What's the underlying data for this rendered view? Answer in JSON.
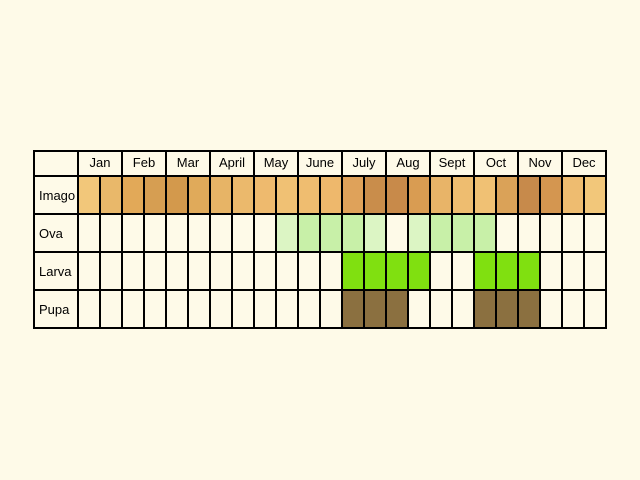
{
  "chart_data": {
    "type": "table",
    "months": [
      "Jan",
      "Feb",
      "Mar",
      "April",
      "May",
      "June",
      "July",
      "Aug",
      "Sept",
      "Oct",
      "Nov",
      "Dec"
    ],
    "half_month_columns": 24,
    "stages": [
      {
        "name": "Imago",
        "fill_color": "#f2c77a",
        "cells": [
          "#f2c77a",
          "#e9b86a",
          "#e2a958",
          "#d69e52",
          "#d3994c",
          "#e0aa5a",
          "#e7b466",
          "#ebb96c",
          "#eeba6e",
          "#f0c174",
          "#efbd70",
          "#eeb86c",
          "#dfa25a",
          "#c98d4b",
          "#c88a4a",
          "#d99c52",
          "#e8b468",
          "#eebd70",
          "#f0c174",
          "#daa258",
          "#c78a4b",
          "#d49650",
          "#eebc70",
          "#f2c77a"
        ]
      },
      {
        "name": "Ova",
        "fill_color": "#c8f0a8",
        "cells": [
          "",
          "",
          "",
          "",
          "",
          "",
          "",
          "",
          "",
          "#dcf5c4",
          "#c8f0a8",
          "#c8f0a8",
          "#c8f0a8",
          "#dcf5c4",
          "",
          "#dcf5c4",
          "#c8f0a8",
          "#c8f0a8",
          "#c8f0a8",
          "",
          "",
          "",
          "",
          ""
        ]
      },
      {
        "name": "Larva",
        "fill_color": "#80e010",
        "cells": [
          "",
          "",
          "",
          "",
          "",
          "",
          "",
          "",
          "",
          "",
          "",
          "",
          "#80e010",
          "#80e010",
          "#80e010",
          "#80e010",
          "",
          "",
          "#80e010",
          "#80e010",
          "#80e010",
          "",
          "",
          ""
        ]
      },
      {
        "name": "Pupa",
        "fill_color": "#8b7040",
        "cells": [
          "",
          "",
          "",
          "",
          "",
          "",
          "",
          "",
          "",
          "",
          "",
          "",
          "#8b7040",
          "#8b7040",
          "#8b7040",
          "",
          "",
          "",
          "#8b7040",
          "#8b7040",
          "#8b7040",
          "",
          "",
          ""
        ]
      }
    ]
  }
}
